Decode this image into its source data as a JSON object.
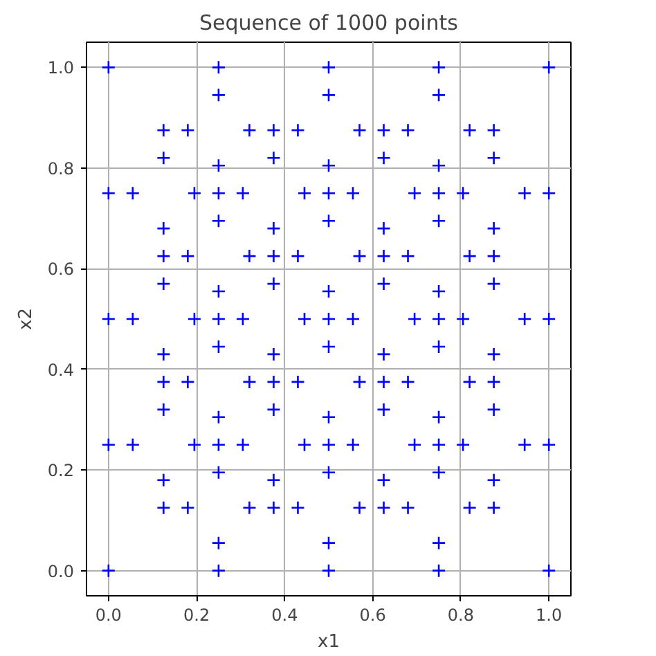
{
  "chart_data": {
    "type": "scatter",
    "title": "Sequence of 1000 points",
    "xlabel": "x1",
    "ylabel": "x2",
    "xlim": [
      -0.05,
      1.05
    ],
    "ylim": [
      -0.05,
      1.05
    ],
    "xticks": [
      {
        "value": 0,
        "label": "0.0"
      },
      {
        "value": 0.2,
        "label": "0.2"
      },
      {
        "value": 0.4,
        "label": "0.4"
      },
      {
        "value": 0.6,
        "label": "0.6"
      },
      {
        "value": 0.8,
        "label": "0.8"
      },
      {
        "value": 1,
        "label": "1.0"
      }
    ],
    "yticks": [
      {
        "value": 0,
        "label": "0.0"
      },
      {
        "value": 0.2,
        "label": "0.2"
      },
      {
        "value": 0.4,
        "label": "0.4"
      },
      {
        "value": 0.6,
        "label": "0.6"
      },
      {
        "value": 0.8,
        "label": "0.8"
      },
      {
        "value": 1,
        "label": "1.0"
      }
    ],
    "grid": true,
    "marker": "cross",
    "series": [
      {
        "color": "#0000ff",
        "x": [
          0.125,
          0.375,
          0.625,
          0.875,
          0.125,
          0.375,
          0.625,
          0.875,
          0.125,
          0.375,
          0.625,
          0.875,
          0.125,
          0.375,
          0.625,
          0.875,
          0,
          0.25,
          0.5,
          0.75,
          1,
          0,
          0.25,
          0.5,
          0.75,
          1,
          0,
          0.25,
          0.5,
          0.75,
          1,
          0,
          0.25,
          0.5,
          0.75,
          1,
          0,
          0.25,
          0.5,
          0.75,
          1,
          0.055,
          0.195,
          0.125,
          0.125,
          0.305,
          0.445,
          0.375,
          0.375,
          0.555,
          0.695,
          0.625,
          0.625,
          0.805,
          0.945,
          0.875,
          0.875,
          0.055,
          0.195,
          0.125,
          0.125,
          0.305,
          0.445,
          0.375,
          0.375,
          0.555,
          0.695,
          0.625,
          0.625,
          0.805,
          0.945,
          0.875,
          0.875,
          0.055,
          0.195,
          0.125,
          0.125,
          0.305,
          0.445,
          0.375,
          0.375,
          0.555,
          0.695,
          0.625,
          0.625,
          0.805,
          0.945,
          0.875,
          0.875,
          0.18,
          0.32,
          0.25,
          0.25,
          0.43,
          0.57,
          0.5,
          0.5,
          0.68,
          0.82,
          0.75,
          0.75,
          0.18,
          0.32,
          0.25,
          0.25,
          0.43,
          0.57,
          0.5,
          0.5,
          0.68,
          0.82,
          0.75,
          0.75,
          0.18,
          0.32,
          0.25,
          0.25,
          0.43,
          0.57,
          0.5,
          0.5,
          0.68,
          0.82,
          0.75,
          0.75,
          0.18,
          0.32,
          0.25,
          0.25,
          0.43,
          0.57,
          0.5,
          0.5,
          0.68,
          0.82,
          0.75,
          0.75
        ],
        "values": [
          0.125,
          0.125,
          0.125,
          0.125,
          0.375,
          0.375,
          0.375,
          0.375,
          0.625,
          0.625,
          0.625,
          0.625,
          0.875,
          0.875,
          0.875,
          0.875,
          0,
          0,
          0,
          0,
          0,
          0.25,
          0.25,
          0.25,
          0.25,
          0.25,
          0.5,
          0.5,
          0.5,
          0.5,
          0.5,
          0.75,
          0.75,
          0.75,
          0.75,
          0.75,
          1,
          1,
          1,
          1,
          1,
          0.25,
          0.25,
          0.18,
          0.32,
          0.25,
          0.25,
          0.18,
          0.32,
          0.25,
          0.25,
          0.18,
          0.32,
          0.25,
          0.25,
          0.18,
          0.32,
          0.5,
          0.5,
          0.43,
          0.57,
          0.5,
          0.5,
          0.43,
          0.57,
          0.5,
          0.5,
          0.43,
          0.57,
          0.5,
          0.5,
          0.43,
          0.57,
          0.75,
          0.75,
          0.68,
          0.82,
          0.75,
          0.75,
          0.68,
          0.82,
          0.75,
          0.75,
          0.68,
          0.82,
          0.75,
          0.75,
          0.68,
          0.82,
          0.125,
          0.125,
          0.055,
          0.195,
          0.125,
          0.125,
          0.055,
          0.195,
          0.125,
          0.125,
          0.055,
          0.195,
          0.375,
          0.375,
          0.305,
          0.445,
          0.375,
          0.375,
          0.305,
          0.445,
          0.375,
          0.375,
          0.305,
          0.445,
          0.625,
          0.625,
          0.555,
          0.695,
          0.625,
          0.625,
          0.555,
          0.695,
          0.625,
          0.625,
          0.555,
          0.695,
          0.875,
          0.875,
          0.805,
          0.945,
          0.875,
          0.875,
          0.805,
          0.945,
          0.875,
          0.875,
          0.805,
          0.945
        ]
      }
    ]
  }
}
